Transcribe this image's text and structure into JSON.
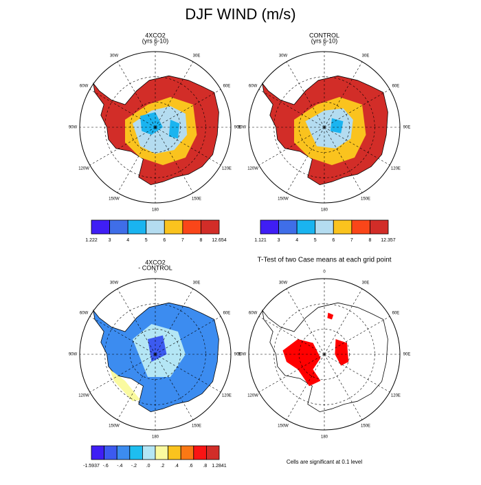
{
  "title": "DJF WIND (m/s)",
  "lon_labels": [
    "0",
    "30E",
    "60E",
    "90E",
    "120E",
    "150E",
    "180",
    "150W",
    "120W",
    "90W",
    "60W",
    "30W"
  ],
  "panels": [
    {
      "title": [
        "4XCO2",
        "(yrs 6-10)"
      ],
      "colorbar": {
        "colors": [
          "#3f1ef5",
          "#3f6ee8",
          "#1ab4f0",
          "#b4dcf0",
          "#fac31e",
          "#fa4619",
          "#d22d28"
        ],
        "labels": [
          "1.222",
          "3",
          "4",
          "5",
          "6",
          "7",
          "8",
          "12.654"
        ]
      }
    },
    {
      "title": [
        "CONTROL",
        "(yrs 6-10)"
      ],
      "colorbar": {
        "colors": [
          "#3f1ef5",
          "#3f6ee8",
          "#1ab4f0",
          "#b4dcf0",
          "#fac31e",
          "#fa4619",
          "#d22d28"
        ],
        "labels": [
          "1.121",
          "3",
          "4",
          "5",
          "6",
          "7",
          "8",
          "12.357"
        ]
      }
    },
    {
      "title": [
        "4XCO2",
        "- CONTROL"
      ],
      "colorbar": {
        "colors": [
          "#3f1ef5",
          "#3c5af0",
          "#3c8cf0",
          "#1ebef0",
          "#b4e6f5",
          "#fafaa0",
          "#fac31e",
          "#fa7814",
          "#fa1414",
          "#d22d28"
        ],
        "labels": [
          "-1.5937",
          "-.6",
          "-.4",
          "-.2",
          ".0",
          ".2",
          ".4",
          ".6",
          ".8",
          "1.2841"
        ]
      }
    },
    {
      "title": [
        "T-Test of two Case means at each grid point"
      ]
    }
  ],
  "footer": "Cells are significant at 0.1 level"
}
